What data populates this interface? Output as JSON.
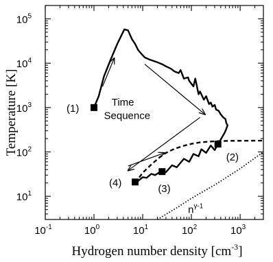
{
  "chart_data": {
    "type": "line",
    "title": "",
    "xlabel": "Hydrogen number density [cm",
    "xlabel_sup": "-3",
    "xlabel_close": "]",
    "ylabel": "Temperature [K]",
    "xscale": "log",
    "yscale": "log",
    "xlim": [
      0.1,
      3000
    ],
    "ylim": [
      3,
      200000
    ],
    "grid": false,
    "x_ticks": [
      {
        "value": 0.1,
        "base": "10",
        "exp": "-1"
      },
      {
        "value": 1,
        "base": "10",
        "exp": "0"
      },
      {
        "value": 10,
        "base": "10",
        "exp": "1"
      },
      {
        "value": 100,
        "base": "10",
        "exp": "2"
      },
      {
        "value": 1000,
        "base": "10",
        "exp": "3"
      }
    ],
    "y_ticks": [
      {
        "value": 10,
        "base": "10",
        "exp": "1"
      },
      {
        "value": 100,
        "base": "10",
        "exp": "2"
      },
      {
        "value": 1000,
        "base": "10",
        "exp": "3"
      },
      {
        "value": 10000,
        "base": "10",
        "exp": "4"
      },
      {
        "value": 100000,
        "base": "10",
        "exp": "5"
      }
    ],
    "series": [
      {
        "style": "solid-thick",
        "x": [
          1.0,
          1.25,
          1.6,
          2.2,
          3.0,
          4.2,
          5.0,
          6.0,
          7.0,
          8.0,
          9.5,
          11,
          14,
          20,
          25,
          30,
          38,
          45,
          55,
          60,
          70,
          75,
          85,
          90,
          110,
          120,
          140,
          150,
          180,
          200,
          230,
          250,
          270,
          300,
          320,
          360,
          400,
          450,
          500,
          520,
          550,
          520,
          480,
          450,
          420,
          400,
          380,
          370,
          360,
          350
        ],
        "y": [
          1000,
          1800,
          5000,
          12000,
          27000,
          58000,
          55000,
          35000,
          27000,
          20000,
          16000,
          13500,
          12000,
          10500,
          9500,
          8500,
          7500,
          6500,
          6000,
          7000,
          4500,
          4600,
          4800,
          4000,
          3000,
          4500,
          2000,
          2300,
          1500,
          1800,
          1200,
          1300,
          1050,
          1150,
          900,
          850,
          700,
          600,
          550,
          450,
          400,
          330,
          270,
          240,
          210,
          190,
          175,
          165,
          155,
          150
        ]
      },
      {
        "style": "solid-hatched",
        "x": [
          350,
          300,
          250,
          200,
          160,
          140,
          110,
          90,
          70,
          50,
          40,
          30,
          25,
          18,
          15,
          12,
          10,
          8,
          7
        ],
        "y": [
          150,
          110,
          140,
          95,
          115,
          80,
          90,
          60,
          70,
          45,
          50,
          35,
          38,
          30,
          32,
          26,
          27,
          22,
          21
        ]
      },
      {
        "style": "dashed",
        "x": [
          7,
          10,
          15,
          22,
          30,
          45,
          70,
          100,
          150,
          250,
          400,
          700,
          1200,
          2000,
          3000
        ],
        "y": [
          20,
          34,
          52,
          75,
          95,
          118,
          138,
          152,
          164,
          172,
          176,
          178,
          178.5,
          179,
          179
        ]
      },
      {
        "style": "dotted",
        "x": [
          20,
          50,
          100,
          300,
          1000,
          3000
        ],
        "y": [
          3,
          5.5,
          9,
          18,
          42,
          100
        ]
      }
    ],
    "markers": [
      {
        "label": "(1)",
        "x": 1.0,
        "y": 1000
      },
      {
        "label": "(2)",
        "x": 350,
        "y": 150
      },
      {
        "label": "(3)",
        "x": 25,
        "y": 36
      },
      {
        "label": "(4)",
        "x": 7,
        "y": 21
      }
    ],
    "arrows": [
      {
        "from": [
          1.5,
          3000
        ],
        "to": [
          2.6,
          13000
        ]
      },
      {
        "from": [
          11,
          9500
        ],
        "to": [
          190,
          700
        ]
      },
      {
        "from": [
          150,
          600
        ],
        "to": [
          5,
          38
        ]
      },
      {
        "from": [
          5,
          48
        ],
        "to": [
          28,
          95
        ]
      }
    ],
    "annotations": [
      {
        "id": "time-sequence-line1",
        "text": "Time",
        "x": 2.3,
        "y": 1100
      },
      {
        "id": "time-sequence-line2",
        "text": "Sequence",
        "x": 1.6,
        "y": 550
      },
      {
        "id": "power-law-label",
        "text": "n",
        "sup": "γ-1",
        "x": 85,
        "y": 4.2
      }
    ]
  }
}
